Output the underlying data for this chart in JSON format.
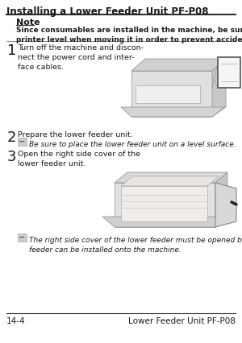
{
  "page_bg": "#e8e8e8",
  "content_bg": "#ffffff",
  "title": "Installing a Lower Feeder Unit PF-P08",
  "note_label": "Note",
  "note_text": "Since consumables are installed in the machine, be sure to keep the\nprinter level when moving it in order to prevent accidental spills.",
  "step1_num": "1",
  "step1_text": "Turn off the machine and discon-\nnect the power cord and inter-\nface cables.",
  "step2_num": "2",
  "step2_text": "Prepare the lower feeder unit.",
  "step2_note": "Be sure to place the lower feeder unit on a level surface.",
  "step3_num": "3",
  "step3_text": "Open the right side cover of the\nlower feeder unit.",
  "step3_note": "The right side cover of the lower feeder must be opened before the\nfeeder can be installed onto the machine.",
  "footer_left": "14-4",
  "footer_right": "Lower Feeder Unit PF-P08",
  "text_color": "#1a1a1a",
  "gray_line": "#888888",
  "dark_line": "#333333"
}
